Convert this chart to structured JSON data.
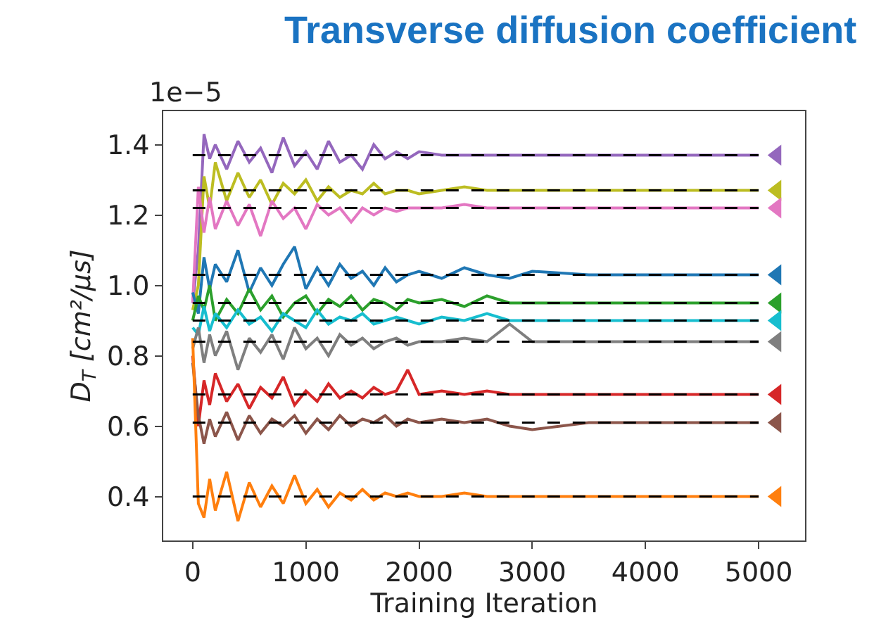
{
  "chart_data": {
    "type": "line",
    "title": "Transverse diffusion coefficient",
    "xlabel": "Training Iteration",
    "ylabel": "D$_{T}$ [cm²/μs]",
    "annotations": [
      "1e−5"
    ],
    "x": [
      0,
      50,
      100,
      150,
      200,
      300,
      400,
      500,
      600,
      700,
      800,
      900,
      1000,
      1100,
      1200,
      1300,
      1400,
      1500,
      1600,
      1700,
      1800,
      1900,
      2000,
      2200,
      2400,
      2600,
      2800,
      3000,
      3500,
      4000,
      4500,
      5000
    ],
    "xlim": [
      -260,
      5410
    ],
    "xticks": [
      0,
      1000,
      2000,
      3000,
      4000,
      5000
    ],
    "ylim": [
      0.275,
      1.495
    ],
    "yticks": [
      {
        "value": 0.4,
        "label": "0.4"
      },
      {
        "value": 0.6,
        "label": "0.6"
      },
      {
        "value": 0.8,
        "label": "0.8"
      },
      {
        "value": 1.0,
        "label": "1.0"
      },
      {
        "value": 1.2,
        "label": "1.2"
      },
      {
        "value": 1.4,
        "label": "1.4"
      }
    ],
    "series": [
      {
        "color": "#9467bd",
        "values": [
          0.95,
          1.1,
          1.43,
          1.36,
          1.4,
          1.33,
          1.41,
          1.35,
          1.39,
          1.32,
          1.42,
          1.34,
          1.38,
          1.33,
          1.41,
          1.35,
          1.37,
          1.33,
          1.4,
          1.36,
          1.38,
          1.36,
          1.38,
          1.37,
          1.37,
          1.37,
          1.37,
          1.37,
          1.37,
          1.37,
          1.37,
          1.37
        ]
      },
      {
        "color": "#bcbd22",
        "values": [
          0.93,
          1.0,
          1.31,
          1.22,
          1.35,
          1.24,
          1.32,
          1.25,
          1.3,
          1.23,
          1.29,
          1.26,
          1.3,
          1.24,
          1.28,
          1.25,
          1.27,
          1.26,
          1.29,
          1.26,
          1.27,
          1.27,
          1.26,
          1.27,
          1.28,
          1.27,
          1.27,
          1.27,
          1.27,
          1.27,
          1.27,
          1.27
        ]
      },
      {
        "color": "#e377c2",
        "values": [
          0.95,
          1.28,
          1.15,
          1.25,
          1.16,
          1.24,
          1.17,
          1.23,
          1.14,
          1.24,
          1.19,
          1.22,
          1.16,
          1.23,
          1.2,
          1.22,
          1.18,
          1.22,
          1.2,
          1.22,
          1.21,
          1.22,
          1.22,
          1.22,
          1.23,
          1.22,
          1.22,
          1.22,
          1.22,
          1.22,
          1.22,
          1.22
        ]
      },
      {
        "color": "#1f77b4",
        "values": [
          0.98,
          0.92,
          1.08,
          0.99,
          1.06,
          1.01,
          1.1,
          0.98,
          1.05,
          1.0,
          1.06,
          1.11,
          0.99,
          1.05,
          1.0,
          1.06,
          1.02,
          1.04,
          1.0,
          1.05,
          1.01,
          1.03,
          1.04,
          1.02,
          1.05,
          1.03,
          1.02,
          1.04,
          1.03,
          1.03,
          1.03,
          1.03
        ]
      },
      {
        "color": "#2ca02c",
        "values": [
          0.9,
          0.97,
          0.93,
          1.0,
          0.9,
          0.96,
          0.92,
          0.99,
          0.93,
          0.97,
          0.91,
          0.95,
          0.97,
          0.92,
          0.96,
          0.94,
          0.97,
          0.93,
          0.96,
          0.95,
          0.93,
          0.96,
          0.95,
          0.96,
          0.94,
          0.97,
          0.95,
          0.95,
          0.95,
          0.95,
          0.95,
          0.95
        ]
      },
      {
        "color": "#17becf",
        "values": [
          0.88,
          0.86,
          0.94,
          0.87,
          0.92,
          0.88,
          0.93,
          0.89,
          0.91,
          0.87,
          0.92,
          0.9,
          0.88,
          0.93,
          0.89,
          0.91,
          0.9,
          0.92,
          0.89,
          0.9,
          0.91,
          0.9,
          0.89,
          0.91,
          0.9,
          0.92,
          0.9,
          0.9,
          0.9,
          0.9,
          0.9,
          0.9
        ]
      },
      {
        "color": "#7f7f7f",
        "values": [
          0.82,
          0.88,
          0.78,
          0.86,
          0.8,
          0.87,
          0.76,
          0.85,
          0.81,
          0.86,
          0.79,
          0.88,
          0.82,
          0.85,
          0.8,
          0.86,
          0.83,
          0.85,
          0.82,
          0.84,
          0.85,
          0.83,
          0.84,
          0.84,
          0.85,
          0.84,
          0.89,
          0.84,
          0.84,
          0.84,
          0.84,
          0.84
        ]
      },
      {
        "color": "#d62728",
        "values": [
          0.8,
          0.6,
          0.73,
          0.66,
          0.75,
          0.67,
          0.72,
          0.65,
          0.71,
          0.68,
          0.74,
          0.66,
          0.7,
          0.67,
          0.72,
          0.68,
          0.7,
          0.68,
          0.71,
          0.69,
          0.7,
          0.76,
          0.69,
          0.7,
          0.69,
          0.7,
          0.69,
          0.69,
          0.69,
          0.69,
          0.69,
          0.69
        ]
      },
      {
        "color": "#8c564b",
        "values": [
          0.78,
          0.63,
          0.55,
          0.62,
          0.57,
          0.64,
          0.56,
          0.63,
          0.58,
          0.62,
          0.6,
          0.63,
          0.58,
          0.62,
          0.59,
          0.63,
          0.6,
          0.62,
          0.61,
          0.63,
          0.6,
          0.62,
          0.61,
          0.62,
          0.61,
          0.62,
          0.6,
          0.59,
          0.61,
          0.61,
          0.61,
          0.61
        ]
      },
      {
        "color": "#ff7f0e",
        "values": [
          0.85,
          0.38,
          0.34,
          0.45,
          0.36,
          0.47,
          0.33,
          0.44,
          0.37,
          0.43,
          0.38,
          0.46,
          0.38,
          0.42,
          0.37,
          0.41,
          0.39,
          0.42,
          0.39,
          0.41,
          0.4,
          0.41,
          0.4,
          0.4,
          0.41,
          0.4,
          0.4,
          0.4,
          0.4,
          0.4,
          0.4,
          0.4
        ]
      },
      {
        "color": "#000000",
        "line_style": "dashed",
        "x": [
          0,
          5000
        ],
        "values": [
          1.37,
          1.37
        ]
      },
      {
        "color": "#000000",
        "line_style": "dashed",
        "x": [
          0,
          5000
        ],
        "values": [
          1.27,
          1.27
        ]
      },
      {
        "color": "#000000",
        "line_style": "dashed",
        "x": [
          0,
          5000
        ],
        "values": [
          1.22,
          1.22
        ]
      },
      {
        "color": "#000000",
        "line_style": "dashed",
        "x": [
          0,
          5000
        ],
        "values": [
          1.03,
          1.03
        ]
      },
      {
        "color": "#000000",
        "line_style": "dashed",
        "x": [
          0,
          5000
        ],
        "values": [
          0.95,
          0.95
        ]
      },
      {
        "color": "#000000",
        "line_style": "dashed",
        "x": [
          0,
          5000
        ],
        "values": [
          0.9,
          0.9
        ]
      },
      {
        "color": "#000000",
        "line_style": "dashed",
        "x": [
          0,
          5000
        ],
        "values": [
          0.84,
          0.84
        ]
      },
      {
        "color": "#000000",
        "line_style": "dashed",
        "x": [
          0,
          5000
        ],
        "values": [
          0.69,
          0.69
        ]
      },
      {
        "color": "#000000",
        "line_style": "dashed",
        "x": [
          0,
          5000
        ],
        "values": [
          0.61,
          0.61
        ]
      },
      {
        "color": "#000000",
        "line_style": "dashed",
        "x": [
          0,
          5000
        ],
        "values": [
          0.4,
          0.4
        ]
      },
      {
        "type": "scatter",
        "marker": "triangle",
        "x": [
          5160,
          5160,
          5160,
          5160,
          5160,
          5160,
          5160,
          5160,
          5160,
          5160
        ],
        "colors": [
          "#9467bd",
          "#bcbd22",
          "#e377c2",
          "#1f77b4",
          "#2ca02c",
          "#17becf",
          "#7f7f7f",
          "#d62728",
          "#8c564b",
          "#ff7f0e"
        ],
        "values": [
          1.37,
          1.27,
          1.22,
          1.03,
          0.95,
          0.9,
          0.84,
          0.69,
          0.61,
          0.4
        ]
      }
    ]
  }
}
